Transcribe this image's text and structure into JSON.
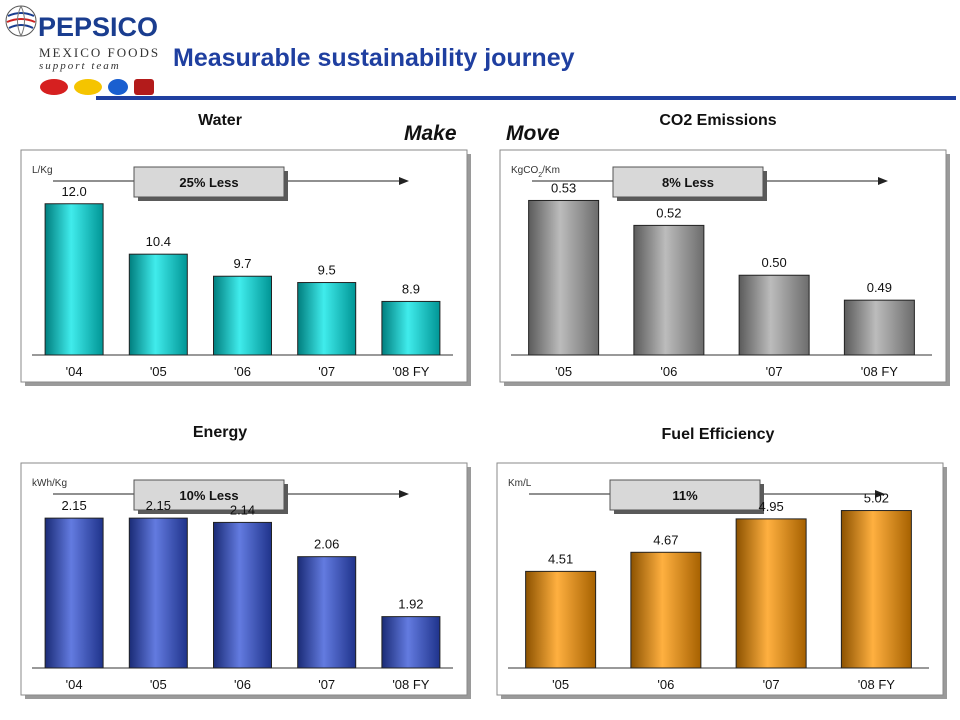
{
  "header": {
    "logo": {
      "name": "PEPSICO",
      "line1": "MEXICO FOODS",
      "line2": "support team"
    },
    "title": "Measurable sustainability journey"
  },
  "labels": {
    "make": "Make",
    "move": "Move"
  },
  "chart_data": [
    {
      "type": "bar",
      "title": "Water",
      "unit": "L/Kg",
      "categories": [
        "'04",
        "'05",
        "'06",
        "'07",
        "'08 FY"
      ],
      "values": [
        12.0,
        10.4,
        9.7,
        9.5,
        8.9
      ],
      "value_labels": [
        "12.0",
        "10.4",
        "9.7",
        "9.5",
        "8.9"
      ],
      "ylim": [
        7.2,
        12.5
      ],
      "callout": "25% Less",
      "color": "#00e5e5"
    },
    {
      "type": "bar",
      "title": "CO2 Emissions",
      "unit": "KgCO2/Km",
      "categories": [
        "'05",
        "'06",
        "'07",
        "'08 FY"
      ],
      "values": [
        0.53,
        0.52,
        0.5,
        0.49
      ],
      "value_labels": [
        "0.53",
        "0.52",
        "0.50",
        "0.49"
      ],
      "ylim": [
        0.468,
        0.535
      ],
      "callout": "8% Less",
      "color": "#a6a6a6"
    },
    {
      "type": "bar",
      "title": "Energy",
      "unit": "kWh/Kg",
      "categories": [
        "'04",
        "'05",
        "'06",
        "'07",
        "'08 FY"
      ],
      "values": [
        2.15,
        2.15,
        2.14,
        2.06,
        1.92
      ],
      "value_labels": [
        "2.15",
        "2.15",
        "2.14",
        "2.06",
        "1.92"
      ],
      "ylim": [
        1.8,
        2.19
      ],
      "callout": "10% Less",
      "color": "#2f4fd6"
    },
    {
      "type": "bar",
      "title": "Fuel Efficiency",
      "unit": "Km/L",
      "categories": [
        "'05",
        "'06",
        "'07",
        "'08 FY"
      ],
      "values": [
        4.51,
        4.67,
        4.95,
        5.02
      ],
      "value_labels": [
        "4.51",
        "4.67",
        "4.95",
        "5.02"
      ],
      "ylim": [
        3.7,
        5.1
      ],
      "callout": "11%",
      "color": "#ff9500"
    }
  ]
}
